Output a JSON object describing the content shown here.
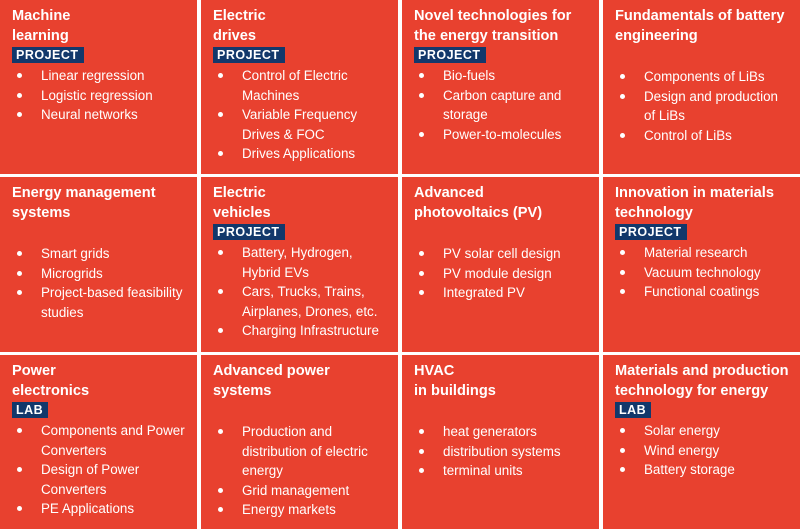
{
  "cells": [
    {
      "title": "Machine\nlearning",
      "badge": "PROJECT",
      "items": [
        "Linear regression",
        "Logistic regression",
        "Neural networks"
      ]
    },
    {
      "title": "Electric\ndrives",
      "badge": "PROJECT",
      "items": [
        "Control of Electric Machines",
        "Variable Frequency Drives & FOC",
        "Drives Applications"
      ]
    },
    {
      "title": "Novel technologies for\nthe energy transition",
      "badge": "PROJECT",
      "items": [
        "Bio-fuels",
        "Carbon capture and storage",
        "Power-to-molecules"
      ]
    },
    {
      "title": "Fundamentals of battery\nengineering",
      "badge": "",
      "items": [
        "Components of LiBs",
        "Design and production of LiBs",
        "Control of LiBs"
      ]
    },
    {
      "title": "Energy management\nsystems",
      "badge": "",
      "items": [
        "Smart grids",
        "Microgrids",
        "Project-based feasibility studies"
      ]
    },
    {
      "title": "Electric\nvehicles",
      "badge": "PROJECT",
      "items": [
        "Battery, Hydrogen, Hybrid EVs",
        "Cars, Trucks, Trains, Airplanes, Drones, etc.",
        "Charging Infrastructure"
      ]
    },
    {
      "title": "Advanced\nphotovoltaics (PV)",
      "badge": "",
      "items": [
        "PV solar cell design",
        "PV module design",
        "Integrated PV"
      ]
    },
    {
      "title": "Innovation in materials\ntechnology",
      "badge": "PROJECT",
      "items": [
        "Material research",
        "Vacuum technology",
        "Functional coatings"
      ]
    },
    {
      "title": "Power\nelectronics",
      "badge": "LAB",
      "items": [
        "Components and Power Converters",
        "Design of Power Converters",
        "PE Applications"
      ]
    },
    {
      "title": "Advanced power\nsystems",
      "badge": "",
      "items": [
        "Production and distribution of electric energy",
        "Grid management",
        "Energy markets"
      ]
    },
    {
      "title": "HVAC\nin buildings",
      "badge": "",
      "items": [
        "heat generators",
        "distribution systems",
        "terminal units"
      ]
    },
    {
      "title": "Materials and production\ntechnology for energy",
      "badge": "LAB",
      "items": [
        "Solar energy",
        "Wind energy",
        "Battery storage"
      ]
    }
  ]
}
